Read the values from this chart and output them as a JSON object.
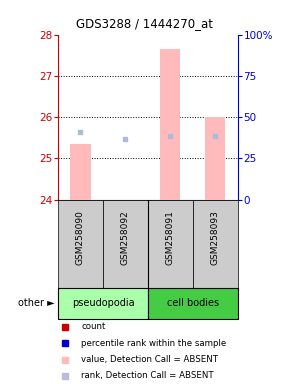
{
  "title": "GDS3288 / 1444270_at",
  "samples": [
    "GSM258090",
    "GSM258092",
    "GSM258091",
    "GSM258093"
  ],
  "ylim_left": [
    24,
    28
  ],
  "ylim_right": [
    0,
    100
  ],
  "yticks_left": [
    24,
    25,
    26,
    27,
    28
  ],
  "yticks_right": [
    0,
    25,
    50,
    75,
    100
  ],
  "ytick_right_labels": [
    "0",
    "25",
    "50",
    "75",
    "100%"
  ],
  "bar_values": [
    25.35,
    24.0,
    27.65,
    26.0
  ],
  "bar_color": "#ffbbbb",
  "dot_values": [
    25.65,
    25.48,
    25.55,
    25.55
  ],
  "dot_color": "#aabbdd",
  "bar_bottom": 24.0,
  "bar_width": 0.45,
  "legend_items": [
    {
      "label": "count",
      "color": "#cc0000"
    },
    {
      "label": "percentile rank within the sample",
      "color": "#0000cc"
    },
    {
      "label": "value, Detection Call = ABSENT",
      "color": "#ffbbbb"
    },
    {
      "label": "rank, Detection Call = ABSENT",
      "color": "#bbbbdd"
    }
  ],
  "left_axis_color": "#cc0000",
  "right_axis_color": "#0000cc",
  "sample_label_box_color": "#cccccc",
  "pseudopodia_color": "#aaffaa",
  "cell_bodies_color": "#44cc44"
}
